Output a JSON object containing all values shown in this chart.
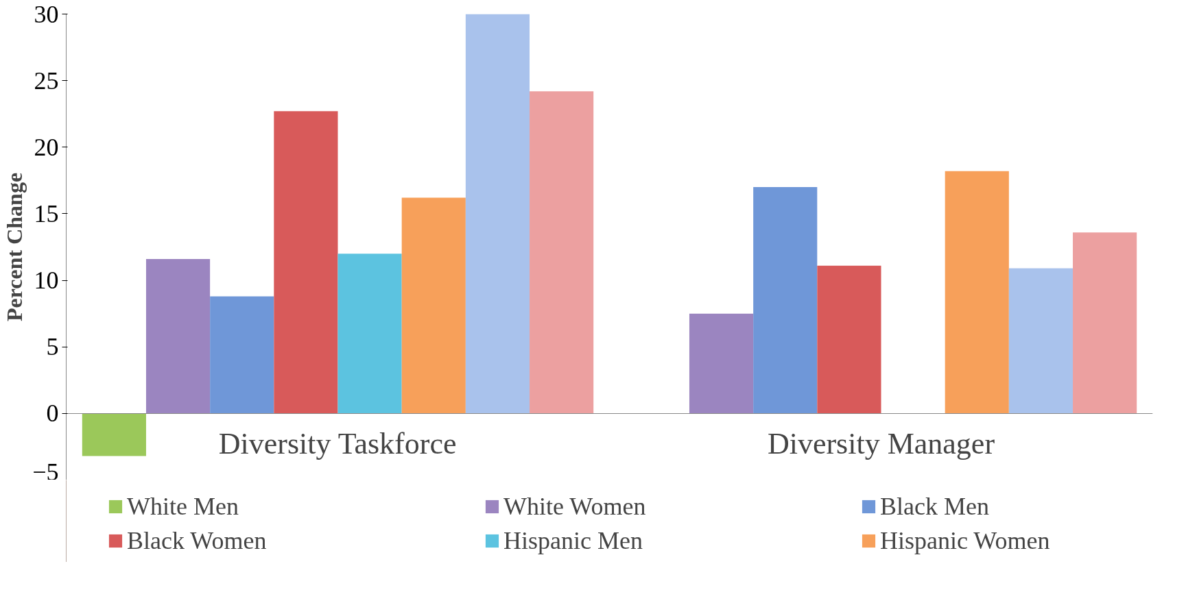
{
  "chart_data": {
    "type": "bar",
    "ylabel": "Percent Change",
    "categories": [
      "Diversity Taskforce",
      "Diversity Manager"
    ],
    "series": [
      {
        "name": "White Men",
        "color": "#9bc85a",
        "values": [
          -3.2,
          null
        ]
      },
      {
        "name": "White Women",
        "color": "#9b85c0",
        "values": [
          11.6,
          7.5
        ]
      },
      {
        "name": "Black Men",
        "color": "#6f97d8",
        "values": [
          8.8,
          17.0
        ]
      },
      {
        "name": "Black Women",
        "color": "#d85a5a",
        "values": [
          22.7,
          11.1
        ]
      },
      {
        "name": "Hispanic Men",
        "color": "#5cc3e0",
        "values": [
          12.0,
          null
        ]
      },
      {
        "name": "Hispanic Women",
        "color": "#f7a05a",
        "values": [
          16.2,
          18.2
        ]
      },
      {
        "color": "#a9c2ec",
        "values": [
          30.0,
          10.9
        ]
      },
      {
        "color": "#eca0a0",
        "values": [
          24.2,
          13.6
        ]
      }
    ],
    "ylim": [
      -5,
      30
    ],
    "yticks": [
      -5,
      0,
      5,
      10,
      15,
      20,
      25,
      30
    ],
    "grid": false,
    "legend": "bottom"
  }
}
